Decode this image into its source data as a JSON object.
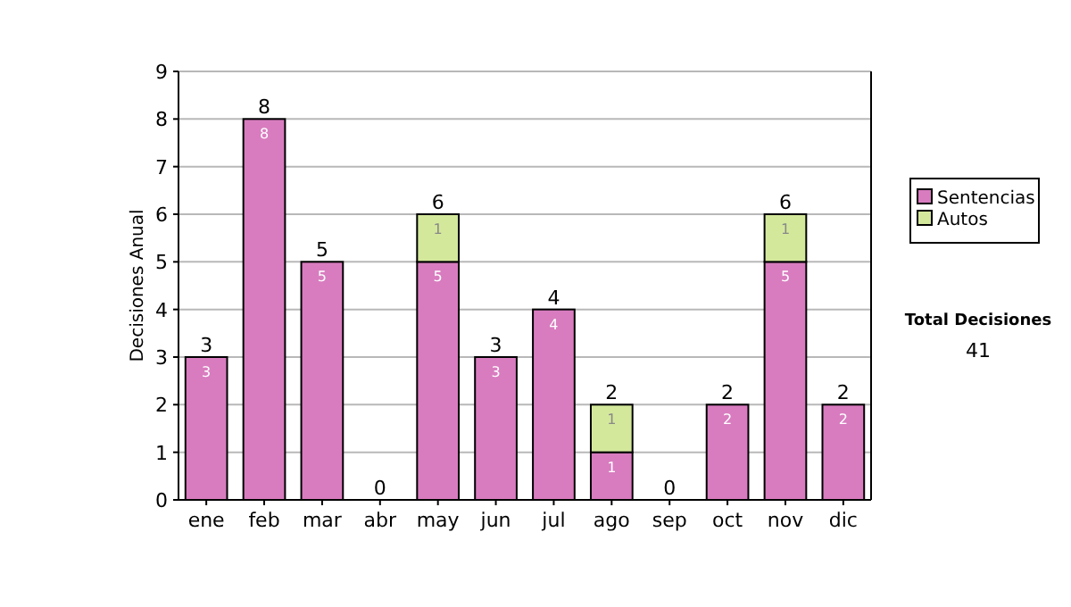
{
  "chart_data": {
    "type": "bar",
    "stacked": true,
    "ylabel": "Decisiones Anual",
    "categories": [
      "ene",
      "feb",
      "mar",
      "abr",
      "may",
      "jun",
      "jul",
      "ago",
      "sep",
      "oct",
      "nov",
      "dic"
    ],
    "series": [
      {
        "name": "Sentencias",
        "color": "#d87cbf",
        "values": [
          3,
          8,
          5,
          0,
          5,
          3,
          4,
          1,
          0,
          2,
          5,
          2
        ],
        "value_labels": [
          "3",
          "8",
          "5",
          null,
          "5",
          "3",
          "4",
          "1",
          null,
          "2",
          "5",
          "2"
        ]
      },
      {
        "name": "Autos",
        "color": "#d4e89c",
        "values": [
          0,
          0,
          0,
          0,
          1,
          0,
          0,
          1,
          0,
          0,
          1,
          0
        ],
        "value_labels": [
          null,
          null,
          null,
          null,
          "1",
          null,
          null,
          "1",
          null,
          null,
          "1",
          null
        ]
      }
    ],
    "totals": [
      "3",
      "8",
      "5",
      "0",
      "6",
      "3",
      "4",
      "2",
      "0",
      "2",
      "6",
      "2"
    ],
    "ylim": [
      0,
      9
    ],
    "yticks": [
      0,
      1,
      2,
      3,
      4,
      5,
      6,
      7,
      8,
      9
    ],
    "grid": "y",
    "legend": "right",
    "annotations": [
      "Total Decisiones",
      "41"
    ]
  }
}
